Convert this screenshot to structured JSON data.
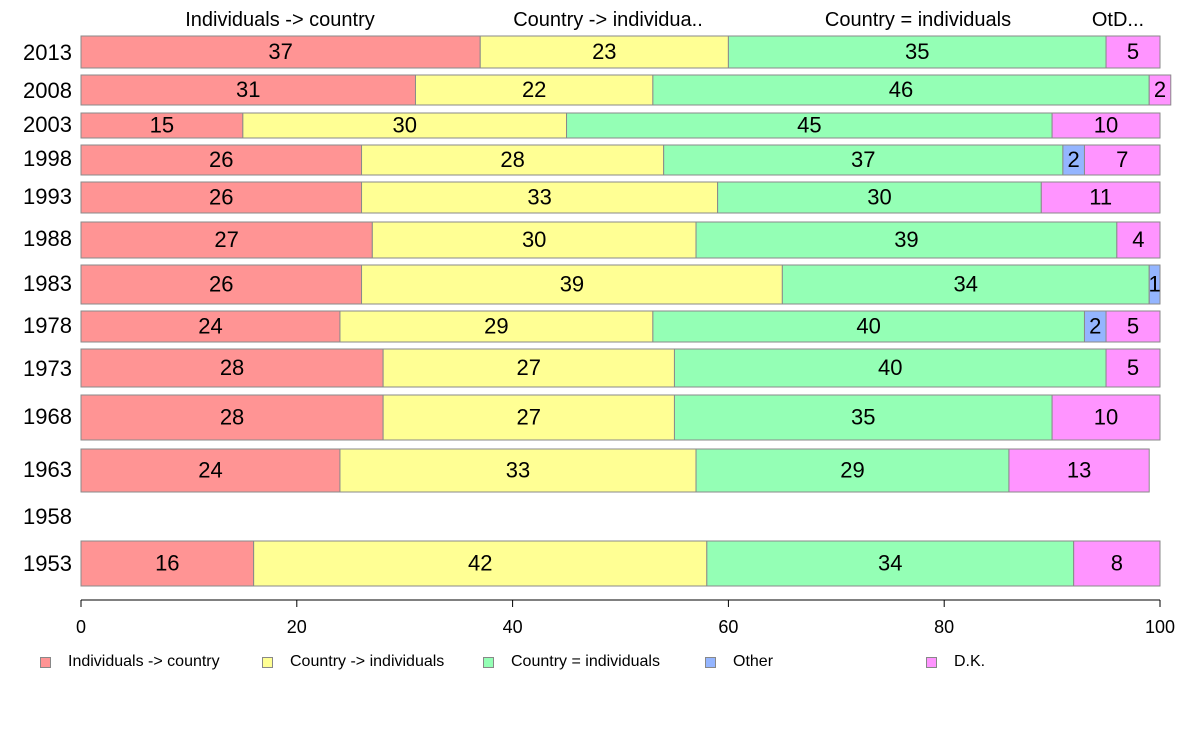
{
  "chart_data": {
    "type": "bar",
    "orientation": "horizontal",
    "stacked": true,
    "categories": [
      "2013",
      "2008",
      "2003",
      "1998",
      "1993",
      "1988",
      "1983",
      "1978",
      "1973",
      "1968",
      "1963",
      "1958",
      "1953"
    ],
    "series": [
      {
        "name": "Individuals -> country",
        "color": "#ff9494",
        "values": [
          37,
          31,
          15,
          26,
          26,
          27,
          26,
          24,
          28,
          28,
          24,
          null,
          16
        ]
      },
      {
        "name": "Country -> individuals",
        "color": "#ffff94",
        "values": [
          23,
          22,
          30,
          28,
          33,
          30,
          39,
          29,
          27,
          27,
          33,
          null,
          42
        ]
      },
      {
        "name": "Country = individuals",
        "color": "#94ffb5",
        "values": [
          35,
          46,
          45,
          37,
          30,
          39,
          34,
          40,
          40,
          35,
          29,
          null,
          34
        ]
      },
      {
        "name": "Other",
        "color": "#94b5ff",
        "values": [
          0,
          0,
          0,
          2,
          0,
          0,
          1,
          2,
          0,
          0,
          0,
          null,
          0
        ]
      },
      {
        "name": "D.K.",
        "color": "#ff94ff",
        "values": [
          5,
          2,
          10,
          7,
          11,
          4,
          0,
          5,
          5,
          10,
          13,
          null,
          8
        ]
      }
    ],
    "column_headers": [
      "Individuals -> country",
      "Country -> individua..",
      "Country = individuals",
      "OtD..."
    ],
    "xlim": [
      0,
      100
    ],
    "xticks": [
      0,
      20,
      40,
      60,
      80,
      100
    ],
    "legend_position": "bottom",
    "grid": false
  }
}
